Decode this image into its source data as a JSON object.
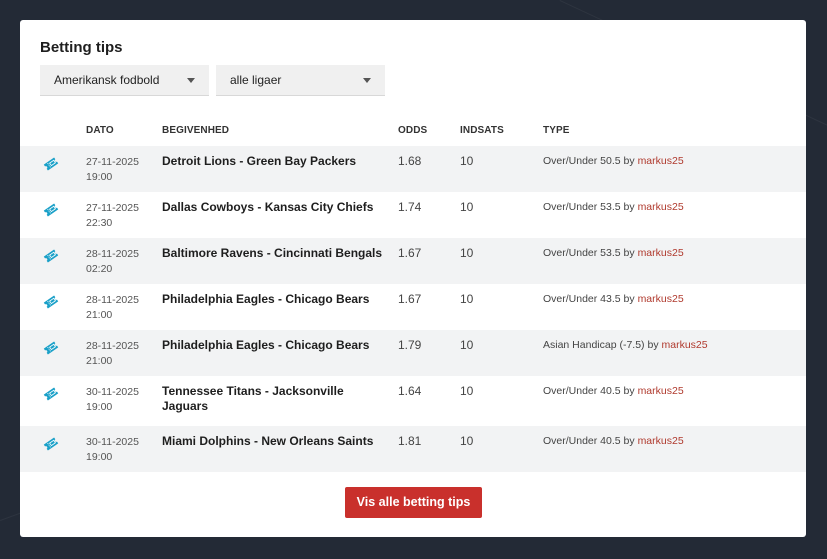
{
  "card": {
    "title": "Betting tips",
    "sport_select": "Amerikansk fodbold",
    "league_select": "alle ligaer"
  },
  "table": {
    "headers": {
      "dato": "DATO",
      "begivenhed": "BEGIVENHED",
      "odds": "ODDS",
      "indsats": "INDSATS",
      "type": "TYPE"
    },
    "rows": [
      {
        "date": "27-11-2025",
        "time": "19:00",
        "event": "Detroit Lions - Green Bay Packers",
        "odds": "1.68",
        "stake": "10",
        "type": "Over/Under 50.5",
        "by": "by",
        "user": "markus25"
      },
      {
        "date": "27-11-2025",
        "time": "22:30",
        "event": "Dallas Cowboys - Kansas City Chiefs",
        "odds": "1.74",
        "stake": "10",
        "type": "Over/Under 53.5",
        "by": "by",
        "user": "markus25"
      },
      {
        "date": "28-11-2025",
        "time": "02:20",
        "event": "Baltimore Ravens - Cincinnati Bengals",
        "odds": "1.67",
        "stake": "10",
        "type": "Over/Under 53.5",
        "by": "by",
        "user": "markus25"
      },
      {
        "date": "28-11-2025",
        "time": "21:00",
        "event": "Philadelphia Eagles - Chicago Bears",
        "odds": "1.67",
        "stake": "10",
        "type": "Over/Under 43.5",
        "by": "by",
        "user": "markus25"
      },
      {
        "date": "28-11-2025",
        "time": "21:00",
        "event": "Philadelphia Eagles - Chicago Bears",
        "odds": "1.79",
        "stake": "10",
        "type": "Asian Handicap (-7.5)",
        "by": "by",
        "user": "markus25"
      },
      {
        "date": "30-11-2025",
        "time": "19:00",
        "event": "Tennessee Titans - Jacksonville Jaguars",
        "odds": "1.64",
        "stake": "10",
        "type": "Over/Under 40.5",
        "by": "by",
        "user": "markus25"
      },
      {
        "date": "30-11-2025",
        "time": "19:00",
        "event": "Miami Dolphins - New Orleans Saints",
        "odds": "1.81",
        "stake": "10",
        "type": "Over/Under 40.5",
        "by": "by",
        "user": "markus25"
      }
    ]
  },
  "footer": {
    "button_label": "Vis alle betting tips"
  },
  "colors": {
    "accent": "#c9302c",
    "link": "#b03a2e",
    "icon": "#1aa0c8",
    "background": "#232a36"
  },
  "icons": {
    "row_icon": "ticket-icon",
    "select_caret": "caret-down-icon"
  }
}
